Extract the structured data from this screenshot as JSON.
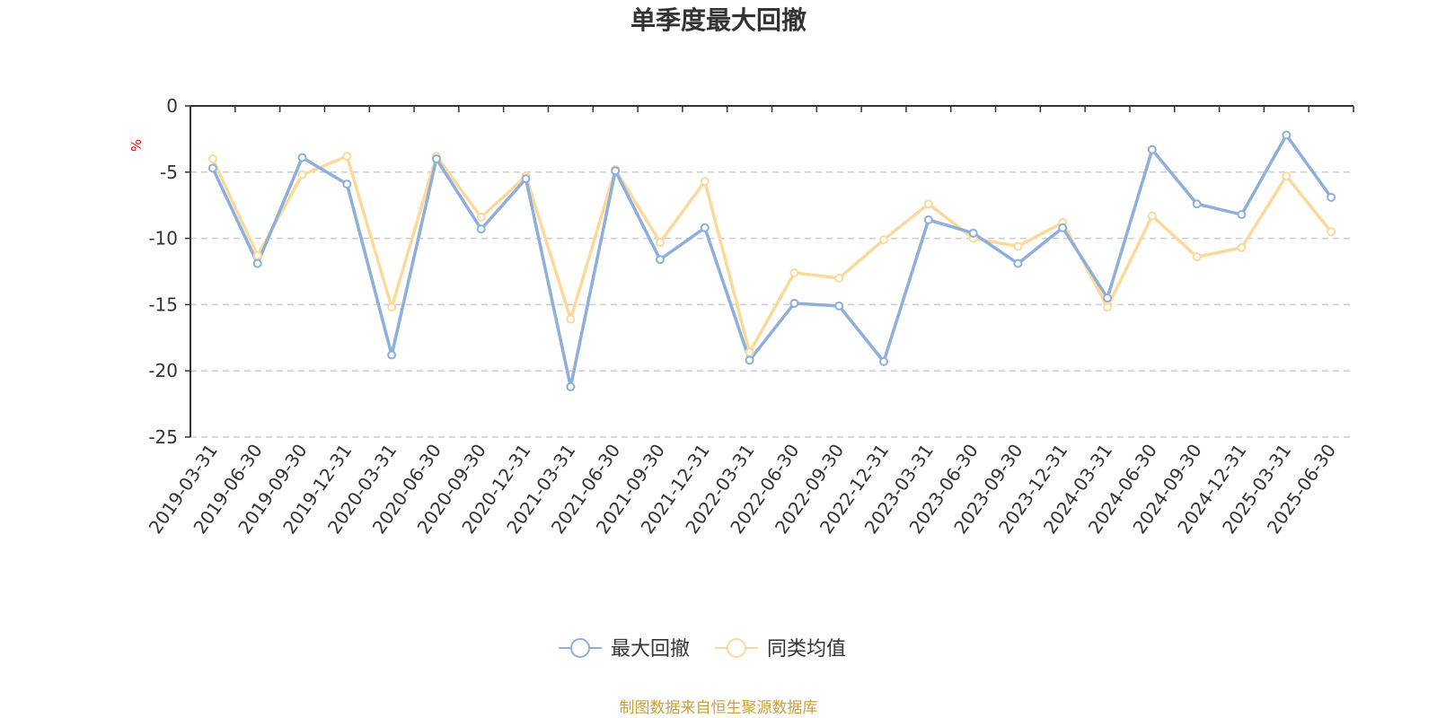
{
  "chart_data": {
    "type": "line",
    "title": "单季度最大回撤",
    "ylabel": "%",
    "source": "制图数据来自恒生聚源数据库",
    "ylim": [
      -25,
      0
    ],
    "yticks": [
      0,
      -5,
      -10,
      -15,
      -20,
      -25
    ],
    "grid": true,
    "legend_position": "bottom",
    "categories": [
      "2019-03-31",
      "2019-06-30",
      "2019-09-30",
      "2019-12-31",
      "2020-03-31",
      "2020-06-30",
      "2020-09-30",
      "2020-12-31",
      "2021-03-31",
      "2021-06-30",
      "2021-09-30",
      "2021-12-31",
      "2022-03-31",
      "2022-06-30",
      "2022-09-30",
      "2022-12-31",
      "2023-03-31",
      "2023-06-30",
      "2023-09-30",
      "2023-12-31",
      "2024-03-31",
      "2024-06-30",
      "2024-09-30",
      "2024-12-31",
      "2025-03-31",
      "2025-06-30"
    ],
    "series": [
      {
        "name": "最大回撤",
        "color": "#8eaedb",
        "values": [
          -4.7,
          -11.9,
          -3.9,
          -5.9,
          -18.8,
          -4.0,
          -9.3,
          -5.5,
          -21.2,
          -4.9,
          -11.6,
          -9.2,
          -19.2,
          -14.9,
          -15.1,
          -19.3,
          -8.6,
          -9.6,
          -11.9,
          -9.2,
          -14.5,
          -3.3,
          -7.4,
          -8.2,
          -2.2,
          -6.9
        ]
      },
      {
        "name": "同类均值",
        "color": "#fbd99b",
        "values": [
          -4.0,
          -11.3,
          -5.2,
          -3.8,
          -15.2,
          -3.8,
          -8.4,
          -5.3,
          -16.1,
          -4.8,
          -10.3,
          -5.7,
          -18.6,
          -12.6,
          -13.0,
          -10.1,
          -7.4,
          -10.0,
          -10.6,
          -8.8,
          -15.2,
          -8.3,
          -11.4,
          -10.7,
          -5.3,
          -9.5
        ]
      }
    ]
  }
}
